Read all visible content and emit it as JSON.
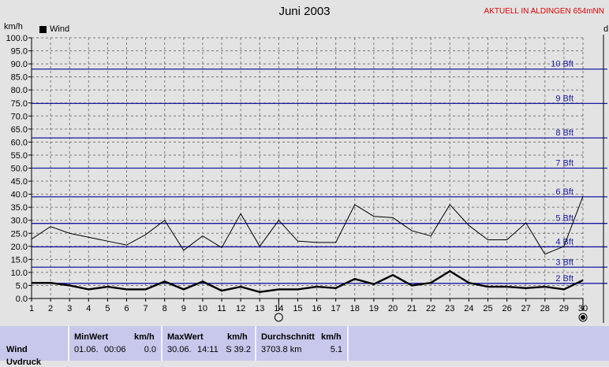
{
  "title": "Juni 2003",
  "location_label": "AKTUELL IN ALDINGEN 654mNN",
  "unit_left": "km/h",
  "unit_right": "d",
  "legend": {
    "label": "Wind"
  },
  "colors": {
    "background": "#e3e3e3",
    "wind_line": "#000000",
    "bft_lines": "#1a1aa0",
    "stats_panel": "#c8c8ec"
  },
  "icons": [
    "full-moon-icon",
    "new-moon-icon"
  ],
  "chart_data": {
    "type": "line",
    "title": "Juni 2003",
    "ylabel": "km/h",
    "ylim": [
      0,
      100
    ],
    "yticks": [
      "0.0",
      "5.0",
      "10.0",
      "15.0",
      "20.0",
      "25.0",
      "30.0",
      "35.0",
      "40.0",
      "45.0",
      "50.0",
      "55.0",
      "60.0",
      "65.0",
      "70.0",
      "75.0",
      "80.0",
      "85.0",
      "90.0",
      "95.0",
      "100.0"
    ],
    "x": [
      1,
      2,
      3,
      4,
      5,
      6,
      7,
      8,
      9,
      10,
      11,
      12,
      13,
      14,
      15,
      16,
      17,
      18,
      19,
      20,
      21,
      22,
      23,
      24,
      25,
      26,
      27,
      28,
      29,
      30
    ],
    "series": [
      {
        "name": "Wind",
        "style": "max_thin",
        "values": [
          22.8,
          27.6,
          25.0,
          23.5,
          22.0,
          20.5,
          24.5,
          30.0,
          18.5,
          24.0,
          19.5,
          32.5,
          20.0,
          30.0,
          22.0,
          21.5,
          21.5,
          36.0,
          31.5,
          31.0,
          26.0,
          24.0,
          36.0,
          28.0,
          22.5,
          22.5,
          29.0,
          17.0,
          20.0,
          39.2
        ]
      },
      {
        "name": "Wind",
        "style": "mean_bold",
        "values": [
          6.0,
          6.0,
          5.0,
          3.5,
          4.5,
          3.5,
          3.5,
          6.5,
          3.5,
          6.5,
          3.0,
          4.5,
          2.5,
          3.5,
          3.5,
          4.5,
          4.0,
          7.5,
          5.5,
          9.0,
          5.0,
          6.0,
          10.5,
          6.0,
          4.5,
          4.5,
          4.0,
          4.5,
          3.5,
          7.0
        ]
      }
    ],
    "beaufort": [
      {
        "label": "2 Bft",
        "value": 5.8
      },
      {
        "label": "3 Bft",
        "value": 12.0
      },
      {
        "label": "4 Bft",
        "value": 19.8
      },
      {
        "label": "5 Bft",
        "value": 28.8
      },
      {
        "label": "6 Bft",
        "value": 39.0
      },
      {
        "label": "7 Bft",
        "value": 50.0
      },
      {
        "label": "8 Bft",
        "value": 61.6
      },
      {
        "label": "9 Bft",
        "value": 74.8
      },
      {
        "label": "10 Bft",
        "value": 88.0
      }
    ],
    "grid": true,
    "moon_phases": [
      {
        "day": 14,
        "phase": "full"
      },
      {
        "day": 30,
        "phase": "new"
      }
    ]
  },
  "stats": {
    "row_label": "Wind",
    "next_row_label": "Uvdruck",
    "min": {
      "header": "MinWert",
      "unit": "km/h",
      "date": "01.06.",
      "time": "00:06",
      "value": "0.0"
    },
    "max": {
      "header": "MaxWert",
      "unit": "km/h",
      "date": "30.06.",
      "time": "14:11",
      "value": "S 39.2"
    },
    "avg": {
      "header": "Durchschnitt",
      "unit": "km/h",
      "distance": "3703.8 km",
      "value": "5.1"
    }
  }
}
